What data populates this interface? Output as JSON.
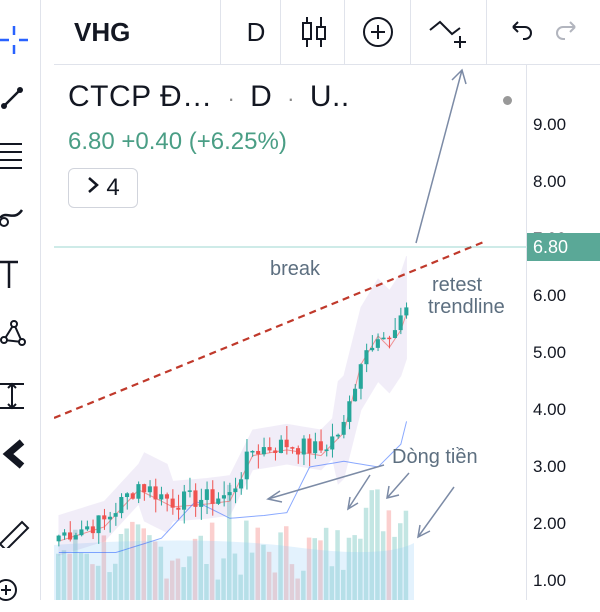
{
  "toolbar": {
    "symbol": "VHG",
    "interval": "D",
    "tools": [
      "crosshair-icon",
      "trend-line-icon",
      "fib-icon",
      "brush-icon",
      "text-icon",
      "pattern-icon",
      "measure-icon",
      "magnet-icon",
      "ruler-icon",
      "zoom-icon"
    ]
  },
  "legend": {
    "name": "CTCP Đ…",
    "interval": "D",
    "exchange": "U..",
    "change": "6.80 +0.40 (+6.25%)",
    "indicators_count": "4"
  },
  "price_axis": {
    "ticks": [
      "9.00",
      "8.00",
      "7.00",
      "6.00",
      "5.00",
      "4.00",
      "3.00",
      "2.00",
      "1.00"
    ],
    "last_price": "6.80"
  },
  "annotations": {
    "break": "break",
    "retest_line1": "retest",
    "retest_line2": "trendline",
    "money_flow": "Dòng tiền"
  },
  "colors": {
    "up": "#26a69a",
    "down": "#ef5350",
    "trendline": "#c0392b",
    "bollinger": "#7e57c2",
    "arrow": "#7c8ba6",
    "price_tag": "#5aa897"
  }
}
